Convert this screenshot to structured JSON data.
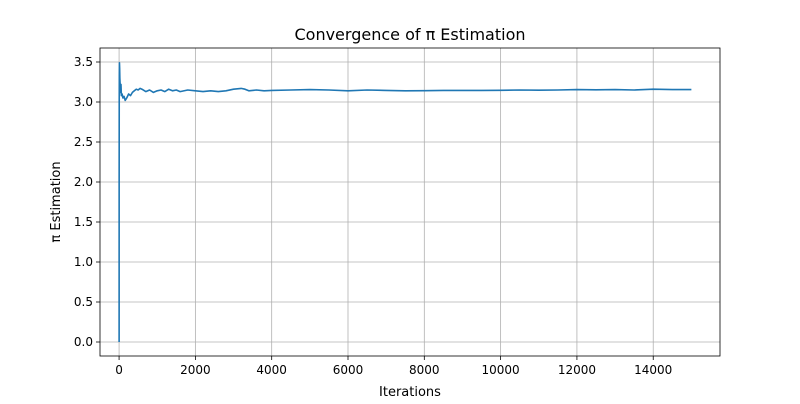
{
  "chart_data": {
    "type": "line",
    "title": "Convergence of π Estimation",
    "xlabel": "Iterations",
    "ylabel": "π Estimation",
    "xlim": [
      -500,
      15750
    ],
    "ylim": [
      -0.175,
      3.675
    ],
    "xticks": [
      0,
      2000,
      4000,
      6000,
      8000,
      10000,
      12000,
      14000
    ],
    "yticks": [
      0.0,
      0.5,
      1.0,
      1.5,
      2.0,
      2.5,
      3.0,
      3.5
    ],
    "xtick_labels": [
      "0",
      "2000",
      "4000",
      "6000",
      "8000",
      "10000",
      "12000",
      "14000"
    ],
    "ytick_labels": [
      "0.0",
      "0.5",
      "1.0",
      "1.5",
      "2.0",
      "2.5",
      "3.0",
      "3.5"
    ],
    "grid": true,
    "line_color": "#1f77b4",
    "series": [
      {
        "x": [
          1,
          2,
          4,
          6,
          10,
          15,
          20,
          30,
          40,
          50,
          60,
          80,
          100,
          130,
          160,
          200,
          250,
          300,
          350,
          400,
          450,
          500,
          550,
          600,
          700,
          800,
          900,
          1000,
          1100,
          1200,
          1300,
          1400,
          1500,
          1600,
          1800,
          2000,
          2200,
          2400,
          2600,
          2800,
          3000,
          3200,
          3300,
          3400,
          3600,
          3800,
          4000,
          4500,
          5000,
          5500,
          6000,
          6500,
          7000,
          7500,
          8000,
          8500,
          9000,
          9500,
          10000,
          10500,
          11000,
          11500,
          12000,
          12500,
          13000,
          13500,
          14000,
          14500,
          15000
        ],
        "y": [
          0.0,
          2.0,
          3.0,
          3.33,
          3.49,
          3.42,
          3.3,
          3.2,
          3.12,
          3.22,
          3.08,
          3.1,
          3.05,
          3.07,
          3.02,
          3.05,
          3.1,
          3.08,
          3.12,
          3.14,
          3.16,
          3.15,
          3.17,
          3.16,
          3.13,
          3.15,
          3.12,
          3.14,
          3.15,
          3.13,
          3.16,
          3.14,
          3.15,
          3.13,
          3.15,
          3.14,
          3.13,
          3.14,
          3.13,
          3.14,
          3.16,
          3.17,
          3.16,
          3.14,
          3.15,
          3.14,
          3.145,
          3.15,
          3.155,
          3.15,
          3.14,
          3.15,
          3.145,
          3.14,
          3.142,
          3.145,
          3.144,
          3.145,
          3.146,
          3.15,
          3.148,
          3.15,
          3.155,
          3.152,
          3.155,
          3.15,
          3.16,
          3.155,
          3.156
        ]
      }
    ]
  }
}
